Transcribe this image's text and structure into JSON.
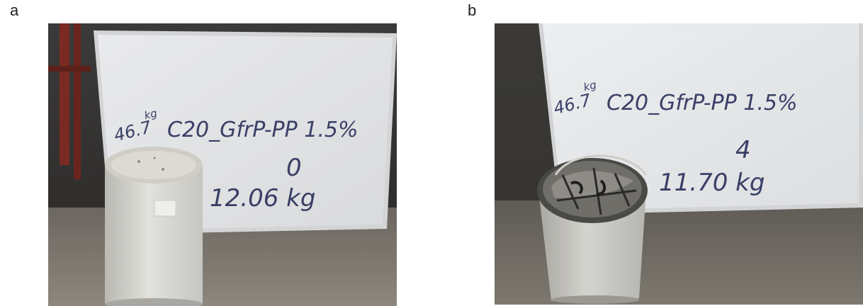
{
  "panels": [
    {
      "letter": "a",
      "weight_note": "46.7",
      "weight_unit": "kg",
      "specimen_label": "C20_GfrP-PP 1.5%",
      "cycle_count": "0",
      "mass_reading": "12.06 kg"
    },
    {
      "letter": "b",
      "weight_note": "46.7",
      "weight_unit": "kg",
      "specimen_label": "C20_GfrP-PP 1.5%",
      "cycle_count": "4",
      "mass_reading": "11.70 kg"
    }
  ]
}
